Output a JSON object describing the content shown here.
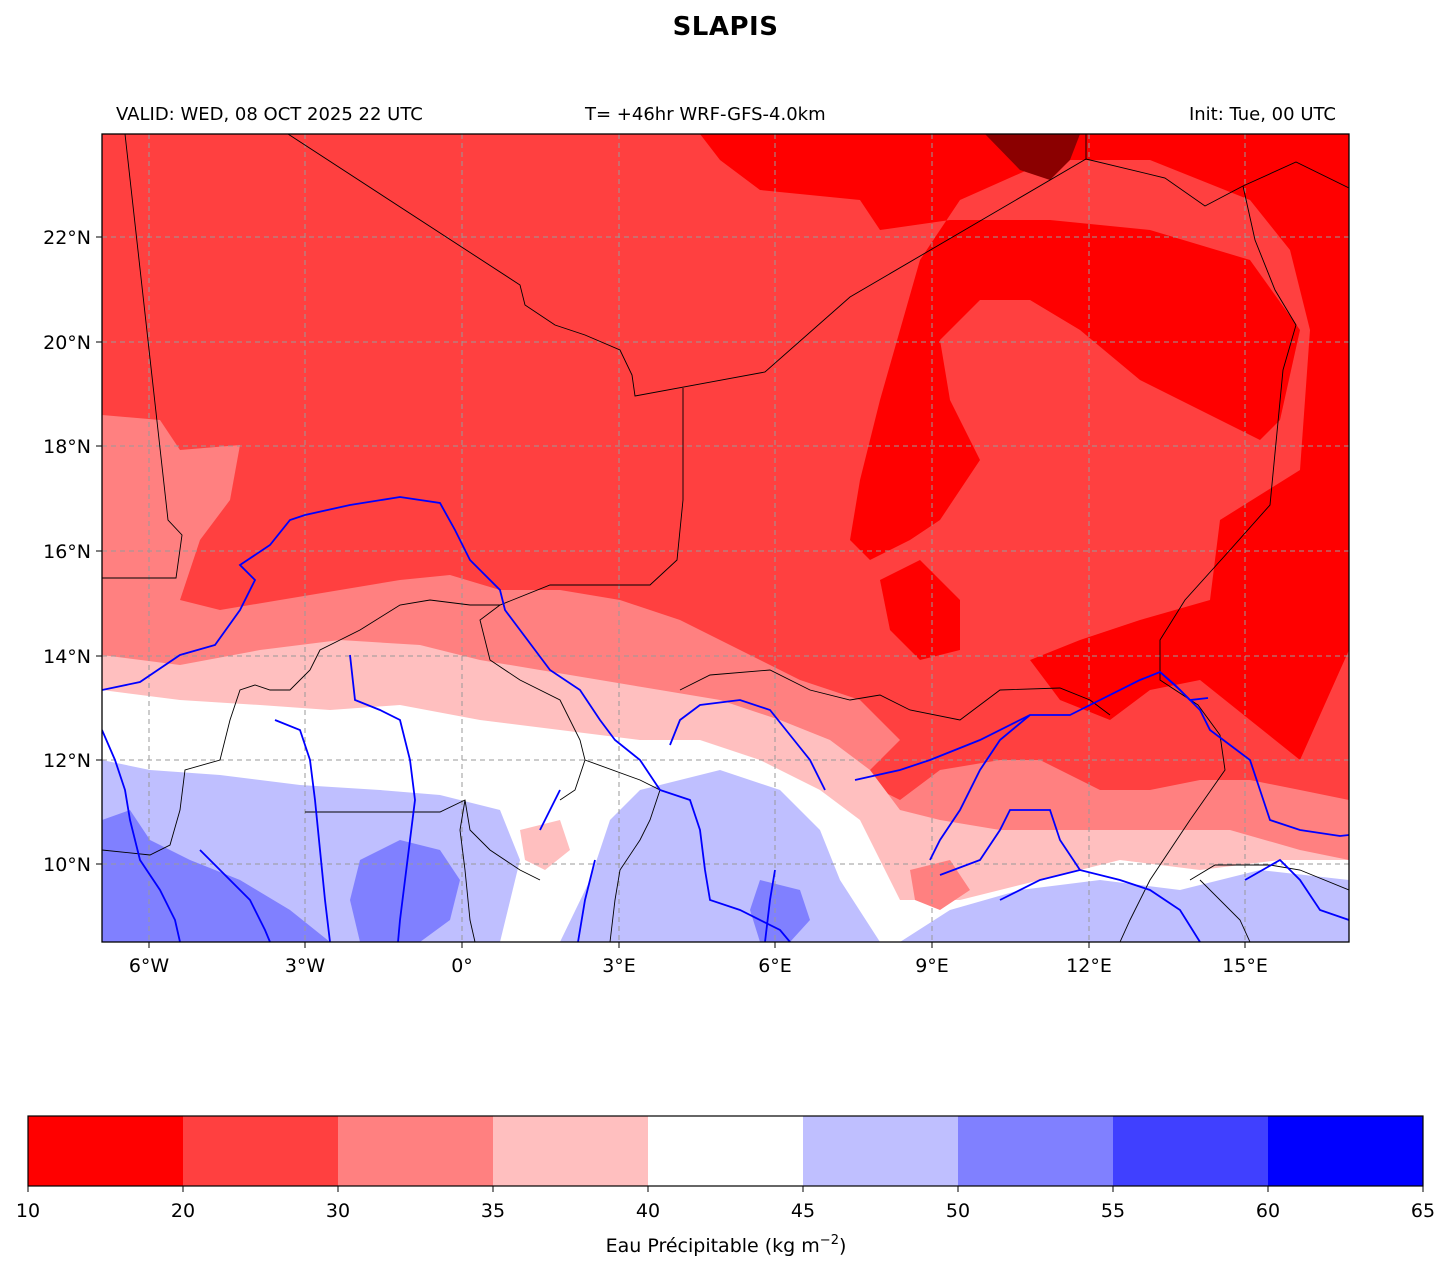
{
  "title": "SLAPIS",
  "subtitle_left": "VALID: WED, 08 OCT 2025 22 UTC",
  "subtitle_center": "T= +46hr WRF-GFS-4.0km",
  "subtitle_right": "Init: Tue, 00 UTC",
  "map": {
    "lon_ticks": [
      "6°W",
      "3°W",
      "0°",
      "3°E",
      "6°E",
      "9°E",
      "12°E",
      "15°E"
    ],
    "lat_ticks": [
      "22°N",
      "20°N",
      "18°N",
      "16°N",
      "14°N",
      "12°N",
      "10°N"
    ],
    "grid": true,
    "field_colors": {
      "10-20": "#ff0000",
      "20-30": "#ff4040",
      "30-35": "#ff8080",
      "35-40": "#ffbfbf",
      "40-45": "#ffffff",
      "45-50": "#bfbfff",
      "50-55": "#8080ff",
      "55-60": "#4040ff",
      "60-65": "#0000ff"
    },
    "river_color": "#0000ff",
    "border_color": "#000000"
  },
  "colorbar": {
    "label": "Eau Précipitable (kg m",
    "label_sup": "−2",
    "label_end": ")",
    "boundaries": [
      "10",
      "20",
      "30",
      "35",
      "40",
      "45",
      "50",
      "55",
      "60",
      "65"
    ],
    "colors": [
      "#ff0000",
      "#ff4040",
      "#ff8080",
      "#ffbfbf",
      "#ffffff",
      "#bfbfff",
      "#8080ff",
      "#4040ff",
      "#0000ff"
    ]
  }
}
